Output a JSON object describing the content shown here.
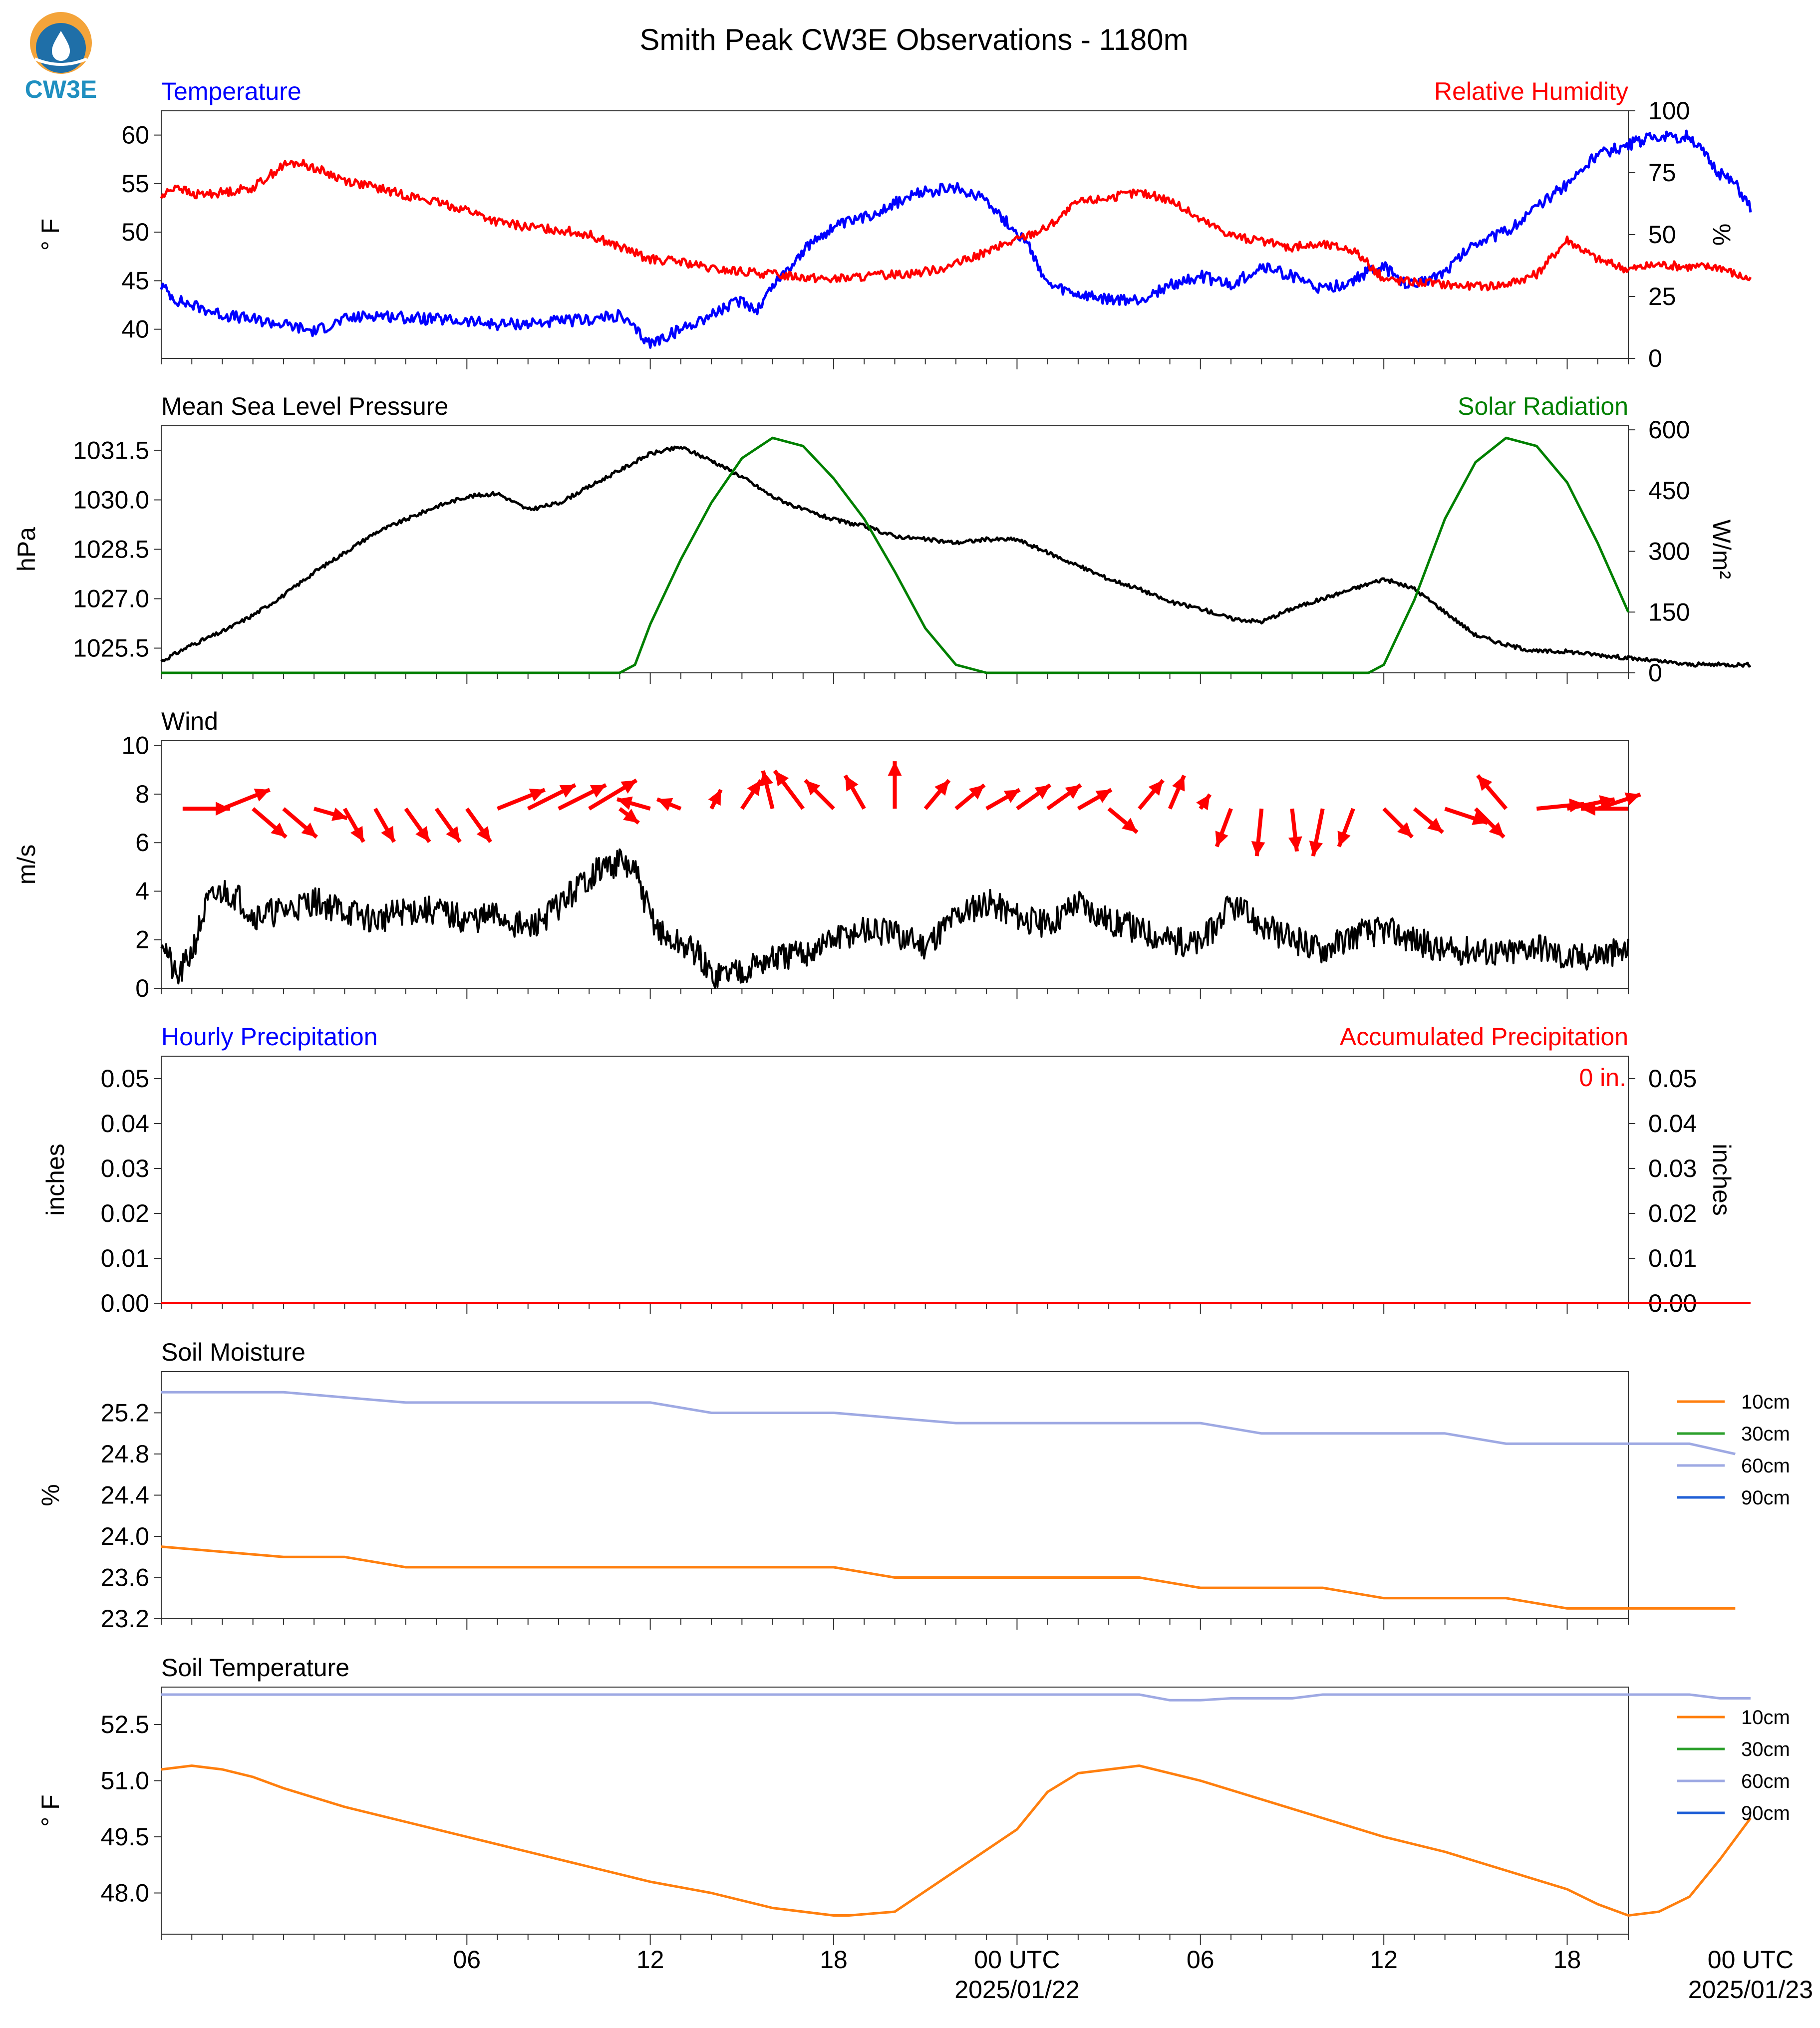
{
  "page": {
    "title": "Smith Peak CW3E Observations - 1180m",
    "logo_text": "CW3E"
  },
  "colors": {
    "temperature": "#0000ff",
    "humidity": "#ff0000",
    "pressure": "#000000",
    "solar": "#008000",
    "wind_speed": "#000000",
    "wind_arrow": "#ff0000",
    "soil_10cm": "#ff7f0e",
    "soil_30cm": "#2ca02c",
    "soil_60cm": "#9ea9e3",
    "soil_90cm": "#1f5fd6",
    "precip_hourly": "#0000ff",
    "precip_accum": "#ff0000"
  },
  "time_axis": {
    "start_hour": -4,
    "end_hour": 44,
    "ticks": [
      {
        "hour": 6,
        "label": "06"
      },
      {
        "hour": 12,
        "label": "12"
      },
      {
        "hour": 18,
        "label": "18"
      },
      {
        "hour": 24,
        "label": "00 UTC",
        "date": "2025/01/22"
      },
      {
        "hour": 30,
        "label": "06"
      },
      {
        "hour": 36,
        "label": "12"
      },
      {
        "hour": 42,
        "label": "18"
      },
      {
        "hour": 48,
        "label": "00 UTC",
        "date": "2025/01/23"
      }
    ]
  },
  "chart_data": [
    {
      "id": "temp_rh",
      "type": "line",
      "title_left": "Temperature",
      "title_right": "Relative Humidity",
      "ylabel_left": "° F",
      "ylabel_right": "%",
      "ylim_left": [
        37,
        62.5
      ],
      "yticks_left": [
        40,
        45,
        50,
        55,
        60
      ],
      "ylim_right": [
        0,
        100
      ],
      "yticks_right": [
        0,
        25,
        50,
        75,
        100
      ],
      "series": [
        {
          "name": "Temperature",
          "axis": "left",
          "color": "#0000ff",
          "x": [
            -4,
            -3.5,
            -3,
            -2,
            -1,
            0,
            1,
            2,
            3,
            4,
            5,
            6,
            7,
            8,
            9,
            10,
            11,
            12,
            13,
            14,
            15,
            15.5,
            16,
            17,
            17.5,
            18,
            19,
            20,
            21,
            22,
            23,
            23.5,
            24,
            24.5,
            25,
            26,
            27,
            28,
            29,
            30,
            31,
            32,
            33,
            34,
            35,
            35.5,
            36,
            36.5,
            37,
            38,
            39,
            40,
            41,
            42,
            43,
            44,
            45,
            45.5,
            46,
            46.5,
            47,
            47.5,
            48
          ],
          "y": [
            44.5,
            43,
            42.5,
            41.5,
            41,
            40.5,
            39.8,
            41,
            41.5,
            41.2,
            41,
            40.8,
            40.5,
            40.6,
            40.8,
            41,
            41.4,
            38.5,
            40,
            41.5,
            43,
            42,
            44.5,
            48,
            49.5,
            50.5,
            51.5,
            53,
            54.2,
            54.5,
            53.5,
            51.5,
            50,
            48,
            44.5,
            43.5,
            43,
            43,
            44.5,
            45.5,
            44.5,
            46.5,
            45.5,
            44,
            45,
            46,
            46.5,
            45,
            44.5,
            46,
            49,
            50,
            52.5,
            55,
            58,
            59,
            60,
            59.5,
            60,
            58,
            56,
            55,
            52.5
          ]
        },
        {
          "name": "Relative Humidity",
          "axis": "right",
          "color": "#ff0000",
          "x": [
            -4,
            -3.5,
            -3,
            -2,
            -1,
            0,
            0.5,
            1,
            2,
            3,
            4,
            5,
            6,
            7,
            8,
            9,
            10,
            11,
            12,
            13,
            14,
            15,
            16,
            17,
            18,
            19,
            20,
            21,
            22,
            23,
            24,
            25,
            26,
            27,
            28,
            29,
            30,
            31,
            32,
            33,
            34,
            35,
            36,
            37,
            38,
            39,
            40,
            41,
            42,
            43,
            44,
            45,
            46,
            47,
            47.5,
            48
          ],
          "y": [
            65,
            70,
            66,
            67,
            69,
            78,
            79,
            77,
            72,
            69,
            66,
            63,
            60,
            55,
            53,
            52,
            50,
            45,
            40,
            39,
            36,
            35,
            34,
            33,
            32,
            33,
            34,
            35,
            38,
            43,
            48,
            53,
            63,
            65,
            67,
            64,
            56,
            50,
            47,
            45,
            46,
            44,
            32,
            31,
            30,
            29,
            30,
            34,
            48,
            40,
            36,
            38,
            37,
            37,
            34,
            32
          ]
        }
      ]
    },
    {
      "id": "pressure_solar",
      "type": "line",
      "title_left": "Mean Sea Level Pressure",
      "title_right": "Solar Radiation",
      "ylabel_left": "hPa",
      "ylabel_right": "W/m²",
      "ylim_left": [
        1024.75,
        1032.25
      ],
      "yticks_left": [
        1025.5,
        1027.0,
        1028.5,
        1030.0,
        1031.5
      ],
      "ylim_right": [
        0,
        610
      ],
      "yticks_right": [
        0,
        150,
        300,
        450,
        600
      ],
      "series": [
        {
          "name": "Mean Sea Level Pressure",
          "axis": "left",
          "color": "#000000",
          "x": [
            -4,
            -3,
            -2,
            -1,
            0,
            1,
            2,
            3,
            4,
            5,
            6,
            7,
            8,
            9,
            10,
            11,
            12,
            13,
            14,
            15,
            16,
            17,
            18,
            19,
            20,
            21,
            22,
            23,
            24,
            25,
            26,
            27,
            28,
            29,
            30,
            31,
            32,
            33,
            34,
            35,
            36,
            37,
            38,
            39,
            40,
            41,
            42,
            43,
            44,
            45,
            46,
            47,
            48
          ],
          "y": [
            1025.1,
            1025.6,
            1026.0,
            1026.5,
            1027.1,
            1027.8,
            1028.4,
            1029.0,
            1029.4,
            1029.8,
            1030.1,
            1030.2,
            1029.7,
            1029.9,
            1030.4,
            1030.9,
            1031.4,
            1031.6,
            1031.2,
            1030.7,
            1030.1,
            1029.7,
            1029.4,
            1029.2,
            1028.9,
            1028.8,
            1028.7,
            1028.8,
            1028.8,
            1028.4,
            1028.0,
            1027.6,
            1027.3,
            1026.9,
            1026.7,
            1026.4,
            1026.3,
            1026.7,
            1027.0,
            1027.3,
            1027.6,
            1027.3,
            1026.6,
            1025.9,
            1025.6,
            1025.4,
            1025.4,
            1025.3,
            1025.2,
            1025.1,
            1025.0,
            1025.0,
            1025.0
          ]
        },
        {
          "name": "Solar Radiation",
          "axis": "right",
          "color": "#008000",
          "x": [
            -4,
            11,
            11.5,
            12,
            13,
            14,
            15,
            16,
            17,
            18,
            19,
            20,
            21,
            22,
            23,
            24,
            35.5,
            36,
            37,
            38,
            39,
            40,
            41,
            42,
            43,
            44
          ],
          "y": [
            0,
            0,
            20,
            120,
            280,
            420,
            530,
            580,
            560,
            480,
            380,
            250,
            110,
            20,
            0,
            0,
            0,
            20,
            180,
            380,
            520,
            580,
            560,
            470,
            320,
            150
          ]
        }
      ]
    },
    {
      "id": "wind",
      "type": "line",
      "title_left": "Wind",
      "ylabel_left": "m/s",
      "ylim_left": [
        0,
        10.2
      ],
      "yticks_left": [
        0,
        2,
        4,
        6,
        8,
        10
      ],
      "series": [
        {
          "name": "Wind speed",
          "color": "#000000",
          "x": [
            -4,
            -3.5,
            -3,
            -2.5,
            -2,
            -1.5,
            -1,
            0,
            1,
            2,
            3,
            4,
            5,
            6,
            7,
            8,
            9,
            10,
            10.5,
            11,
            11.5,
            12,
            12.5,
            13,
            13.5,
            14,
            15,
            16,
            17,
            18,
            19,
            20,
            21,
            22,
            23,
            24,
            25,
            26,
            27,
            28,
            29,
            30,
            31,
            32,
            33,
            34,
            35,
            36,
            37,
            38,
            39,
            40,
            41,
            42,
            43,
            44
          ],
          "y": [
            2.2,
            0.3,
            1.5,
            3.5,
            4.0,
            3.8,
            3.0,
            3.2,
            3.6,
            3.2,
            2.8,
            3.2,
            3.2,
            2.8,
            3.0,
            2.4,
            3.4,
            4.6,
            5.0,
            5.2,
            4.8,
            3.0,
            2.0,
            1.8,
            1.5,
            0.5,
            0.8,
            1.2,
            1.4,
            2.0,
            2.4,
            2.2,
            1.8,
            3.0,
            3.6,
            3.0,
            2.6,
            3.6,
            2.8,
            2.4,
            2.0,
            1.8,
            3.4,
            2.6,
            2.0,
            1.6,
            2.2,
            2.4,
            2.0,
            1.5,
            1.6,
            1.4,
            1.8,
            1.2,
            1.4,
            1.5
          ]
        },
        {
          "name": "Wind direction",
          "kind": "arrows",
          "color": "#ff0000",
          "hours": [
            -3.3,
            -2,
            -1,
            0,
            1,
            2,
            3,
            4,
            5,
            6,
            7,
            8,
            9,
            10,
            11,
            12,
            13,
            14,
            15,
            16,
            17,
            18,
            19,
            20,
            21,
            22,
            23,
            24,
            25,
            26,
            27,
            28,
            29,
            30,
            31,
            32,
            33,
            34,
            35,
            36,
            37,
            38,
            39,
            40,
            41,
            42,
            43,
            44
          ],
          "dx": [
            1,
            1,
            0.7,
            0.7,
            0.7,
            0.4,
            0.4,
            0.5,
            0.5,
            0.5,
            1,
            1,
            1,
            1,
            0.4,
            -0.7,
            -0.5,
            0.2,
            0.4,
            -0.2,
            -0.6,
            -0.6,
            -0.4,
            0,
            0.5,
            0.6,
            0.7,
            0.7,
            0.7,
            0.7,
            0.6,
            0.5,
            0.3,
            0.2,
            -0.3,
            -0.1,
            0.1,
            -0.2,
            -0.3,
            0.6,
            0.6,
            0.9,
            0.6,
            -0.6,
            1,
            1,
            0.9,
            -1
          ],
          "dy": [
            0,
            0.4,
            -0.6,
            -0.6,
            -0.2,
            -0.7,
            -0.7,
            -0.7,
            -0.7,
            -0.7,
            0.4,
            0.5,
            0.5,
            0.6,
            -0.3,
            0.2,
            0.2,
            0.4,
            0.6,
            0.8,
            0.8,
            0.6,
            0.7,
            1,
            0.6,
            0.5,
            0.4,
            0.5,
            0.5,
            0.4,
            -0.5,
            0.6,
            0.7,
            0.3,
            -0.8,
            -1,
            -0.9,
            -1,
            -0.8,
            -0.6,
            -0.5,
            -0.3,
            -0.6,
            0.7,
            0.1,
            0.2,
            0.3,
            0
          ]
        }
      ]
    },
    {
      "id": "precip",
      "type": "line",
      "title_left": "Hourly Precipitation",
      "title_right": "Accumulated Precipitation",
      "ylabel_left": "inches",
      "ylabel_right": "inches",
      "ylim_left": [
        0,
        0.055
      ],
      "yticks_left": [
        "0.00",
        "0.01",
        "0.02",
        "0.03",
        "0.04",
        "0.05"
      ],
      "annotation": "0 in.",
      "series": [
        {
          "name": "Accumulated Precipitation",
          "color": "#ff0000",
          "x": [
            -4,
            48
          ],
          "y": [
            0,
            0
          ]
        }
      ]
    },
    {
      "id": "soil_moisture",
      "type": "line",
      "title_left": "Soil Moisture",
      "ylabel_left": "%",
      "ylim_left": [
        23.2,
        25.6
      ],
      "yticks_left": [
        23.2,
        23.6,
        24.0,
        24.4,
        24.8,
        25.2
      ],
      "legend": [
        "10cm",
        "30cm",
        "60cm",
        "90cm"
      ],
      "series": [
        {
          "name": "60cm",
          "color": "#9ea9e3",
          "x": [
            -4,
            0,
            4,
            6,
            8,
            10,
            12,
            14,
            18,
            22,
            24,
            28,
            30,
            32,
            34,
            36,
            38,
            40,
            42,
            44,
            46,
            47.5
          ],
          "y": [
            25.4,
            25.4,
            25.3,
            25.3,
            25.3,
            25.3,
            25.3,
            25.2,
            25.2,
            25.1,
            25.1,
            25.1,
            25.1,
            25.0,
            25.0,
            25.0,
            25.0,
            24.9,
            24.9,
            24.9,
            24.9,
            24.8
          ]
        },
        {
          "name": "10cm",
          "color": "#ff7f0e",
          "x": [
            -4,
            0,
            2,
            4,
            8,
            12,
            16,
            18,
            20,
            22,
            26,
            28,
            30,
            32,
            34,
            36,
            38,
            40,
            42,
            44,
            46,
            47.5
          ],
          "y": [
            23.9,
            23.8,
            23.8,
            23.7,
            23.7,
            23.7,
            23.7,
            23.7,
            23.6,
            23.6,
            23.6,
            23.6,
            23.5,
            23.5,
            23.5,
            23.4,
            23.4,
            23.4,
            23.3,
            23.3,
            23.3,
            23.3
          ]
        }
      ]
    },
    {
      "id": "soil_temp",
      "type": "line",
      "title_left": "Soil Temperature",
      "ylabel_left": "° F",
      "ylim_left": [
        46.9,
        53.5
      ],
      "yticks_left": [
        48.0,
        49.5,
        51.0,
        52.5
      ],
      "legend": [
        "10cm",
        "30cm",
        "60cm",
        "90cm"
      ],
      "series": [
        {
          "name": "60cm",
          "color": "#9ea9e3",
          "x": [
            -4,
            28,
            29,
            30,
            31,
            32,
            33,
            34,
            35,
            36,
            38,
            40,
            42,
            44,
            46,
            47,
            48
          ],
          "y": [
            53.3,
            53.3,
            53.15,
            53.15,
            53.2,
            53.2,
            53.2,
            53.3,
            53.3,
            53.3,
            53.3,
            53.3,
            53.3,
            53.3,
            53.3,
            53.2,
            53.2
          ]
        },
        {
          "name": "10cm",
          "color": "#ff7f0e",
          "x": [
            -4,
            -3,
            -2,
            -1,
            0,
            2,
            4,
            6,
            8,
            10,
            12,
            14,
            16,
            18,
            18.5,
            20,
            22,
            24,
            24.5,
            25,
            26,
            27,
            28,
            30,
            32,
            34,
            36,
            38,
            40,
            42,
            43,
            44,
            45,
            46,
            47,
            48
          ],
          "y": [
            51.3,
            51.4,
            51.3,
            51.1,
            50.8,
            50.3,
            49.9,
            49.5,
            49.1,
            48.7,
            48.3,
            48.0,
            47.6,
            47.4,
            47.4,
            47.5,
            48.6,
            49.7,
            50.2,
            50.7,
            51.2,
            51.3,
            51.4,
            51.0,
            50.5,
            50.0,
            49.5,
            49.1,
            48.6,
            48.1,
            47.7,
            47.4,
            47.5,
            47.9,
            48.9,
            50.0
          ]
        }
      ]
    }
  ]
}
